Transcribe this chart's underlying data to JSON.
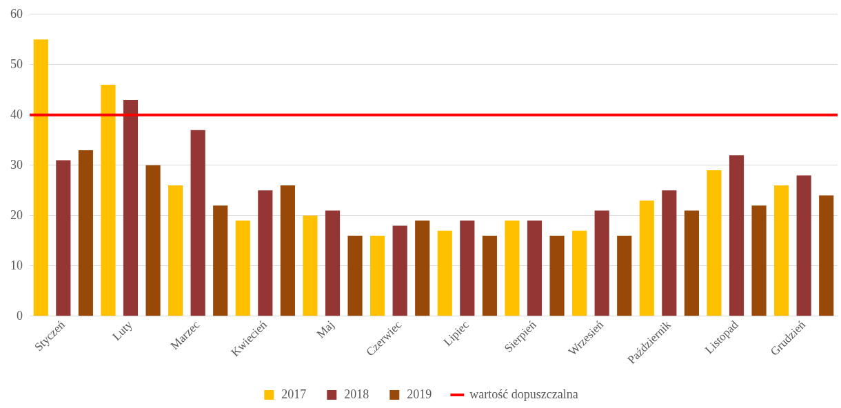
{
  "chart_data": {
    "type": "bar",
    "categories": [
      "Styczeń",
      "Luty",
      "Marzec",
      "Kwiecień",
      "Maj",
      "Czerwiec",
      "Lipiec",
      "Sierpień",
      "Wrzesień",
      "Październik",
      "Listopad",
      "Grudzień"
    ],
    "series": [
      {
        "name": "2017",
        "color": "#ffc000",
        "values": [
          55,
          46,
          26,
          19,
          20,
          16,
          17,
          19,
          17,
          23,
          29,
          26
        ]
      },
      {
        "name": "2018",
        "color": "#943634",
        "values": [
          31,
          43,
          37,
          25,
          21,
          18,
          19,
          19,
          21,
          25,
          32,
          28
        ]
      },
      {
        "name": "2019",
        "color": "#984807",
        "values": [
          33,
          30,
          22,
          26,
          16,
          19,
          16,
          16,
          16,
          21,
          22,
          24
        ]
      }
    ],
    "ylim": [
      0,
      60
    ],
    "yticks": [
      0,
      10,
      20,
      30,
      40,
      50,
      60
    ],
    "grid": "y",
    "legend": "bottom",
    "ref_lines": [
      {
        "axis": "y",
        "value": 40,
        "label": "wartość dopuszczalna",
        "color": "#ff0000"
      }
    ]
  }
}
